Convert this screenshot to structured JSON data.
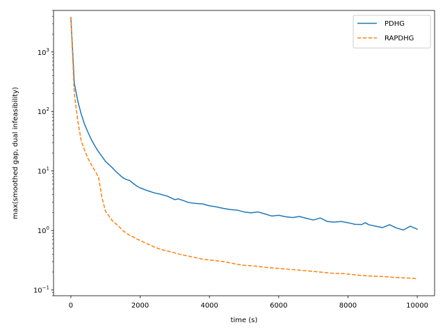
{
  "chart_data": {
    "type": "line",
    "xlabel": "time (s)",
    "ylabel": "max(smoothed gap, dual infeasibility)",
    "yscale": "log",
    "xlim": [
      -500,
      10500
    ],
    "ylim": [
      0.08,
      5000
    ],
    "xticks": [
      0,
      2000,
      4000,
      6000,
      8000,
      10000
    ],
    "xtick_labels": [
      "0",
      "2000",
      "4000",
      "6000",
      "8000",
      "10000"
    ],
    "yticks": [
      0.1,
      1,
      10,
      100,
      1000
    ],
    "ytick_base": "10",
    "ytick_exponents": [
      "−1",
      "0",
      "1",
      "2",
      "3"
    ],
    "legend_placement": "top-right",
    "grid": false,
    "series": [
      {
        "name": "PDHG",
        "color": "#1f77b4",
        "style": "solid",
        "x": [
          0,
          100,
          200,
          300,
          400,
          500,
          600,
          700,
          800,
          900,
          1000,
          1100,
          1200,
          1300,
          1400,
          1500,
          1600,
          1700,
          1800,
          1900,
          2000,
          2200,
          2400,
          2600,
          2800,
          3000,
          3100,
          3200,
          3400,
          3600,
          3800,
          4000,
          4200,
          4400,
          4600,
          4800,
          5000,
          5200,
          5400,
          5600,
          5800,
          6000,
          6200,
          6400,
          6600,
          6800,
          7000,
          7200,
          7400,
          7600,
          7800,
          8000,
          8200,
          8400,
          8500,
          8600,
          8800,
          9000,
          9200,
          9400,
          9600,
          9800,
          10000
        ],
        "y": [
          3800,
          300,
          150,
          90,
          60,
          44,
          33,
          26,
          21,
          17.5,
          14.5,
          12.8,
          11.3,
          9.8,
          8.7,
          7.7,
          7.2,
          6.9,
          6.2,
          5.6,
          5.2,
          4.7,
          4.3,
          4.05,
          3.75,
          3.3,
          3.4,
          3.25,
          2.95,
          2.85,
          2.8,
          2.6,
          2.5,
          2.35,
          2.25,
          2.2,
          2.05,
          1.98,
          2.05,
          1.9,
          1.75,
          1.8,
          1.7,
          1.65,
          1.72,
          1.6,
          1.5,
          1.62,
          1.42,
          1.38,
          1.42,
          1.35,
          1.27,
          1.26,
          1.35,
          1.25,
          1.18,
          1.12,
          1.25,
          1.1,
          1.02,
          1.18,
          1.05
        ]
      },
      {
        "name": "RAPDHG",
        "color": "#ff7f0e",
        "style": "dashed",
        "x": [
          0,
          100,
          200,
          300,
          400,
          500,
          600,
          700,
          800,
          900,
          1000,
          1100,
          1200,
          1300,
          1400,
          1500,
          1600,
          1700,
          1800,
          1900,
          2000,
          2200,
          2400,
          2600,
          2800,
          3000,
          3200,
          3400,
          3600,
          3800,
          4000,
          4200,
          4400,
          4600,
          4800,
          5000,
          5200,
          5400,
          5600,
          5800,
          6000,
          6200,
          6400,
          6600,
          6800,
          7000,
          7200,
          7400,
          7600,
          7800,
          8000,
          8200,
          8400,
          8600,
          8800,
          9000,
          9200,
          9400,
          9600,
          9800,
          10000
        ],
        "y": [
          3900,
          200,
          70,
          32,
          22,
          16,
          12.5,
          10,
          7.8,
          3.5,
          2.1,
          1.75,
          1.45,
          1.3,
          1.15,
          1.0,
          0.9,
          0.83,
          0.78,
          0.72,
          0.68,
          0.6,
          0.53,
          0.48,
          0.45,
          0.42,
          0.39,
          0.37,
          0.35,
          0.33,
          0.32,
          0.31,
          0.3,
          0.285,
          0.27,
          0.26,
          0.255,
          0.25,
          0.24,
          0.235,
          0.23,
          0.225,
          0.22,
          0.215,
          0.21,
          0.205,
          0.2,
          0.195,
          0.19,
          0.19,
          0.185,
          0.18,
          0.175,
          0.172,
          0.17,
          0.168,
          0.165,
          0.162,
          0.16,
          0.158,
          0.155
        ]
      }
    ]
  }
}
